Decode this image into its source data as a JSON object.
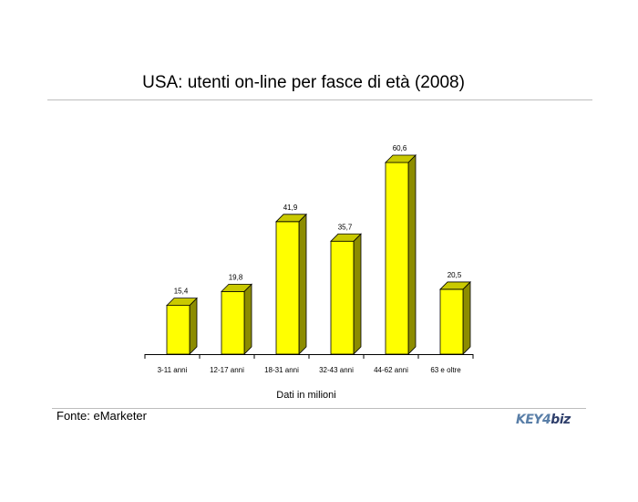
{
  "chart_data": {
    "type": "bar",
    "title": "USA: utenti on-line per fasce di età (2008)",
    "categories": [
      "3-11 anni",
      "12-17 anni",
      "18-31 anni",
      "32-43 anni",
      "44-62 anni",
      "63 e oltre"
    ],
    "values": [
      15.4,
      19.8,
      41.9,
      35.7,
      60.6,
      20.5
    ],
    "value_labels": [
      "15,4",
      "19,8",
      "41,9",
      "35,7",
      "60,6",
      "20,5"
    ],
    "xlabel": "Dati in milioni",
    "ylabel": "",
    "ylim": [
      0,
      60.6
    ],
    "grid": false,
    "legend": "none",
    "bar_color": "#ffff00",
    "bar_side_color": "#8c8c00",
    "bar_top_color": "#c9c900"
  },
  "footer": {
    "source": "Fonte: eMarketer",
    "logo_main": "KEY4",
    "logo_accent": "biz"
  }
}
